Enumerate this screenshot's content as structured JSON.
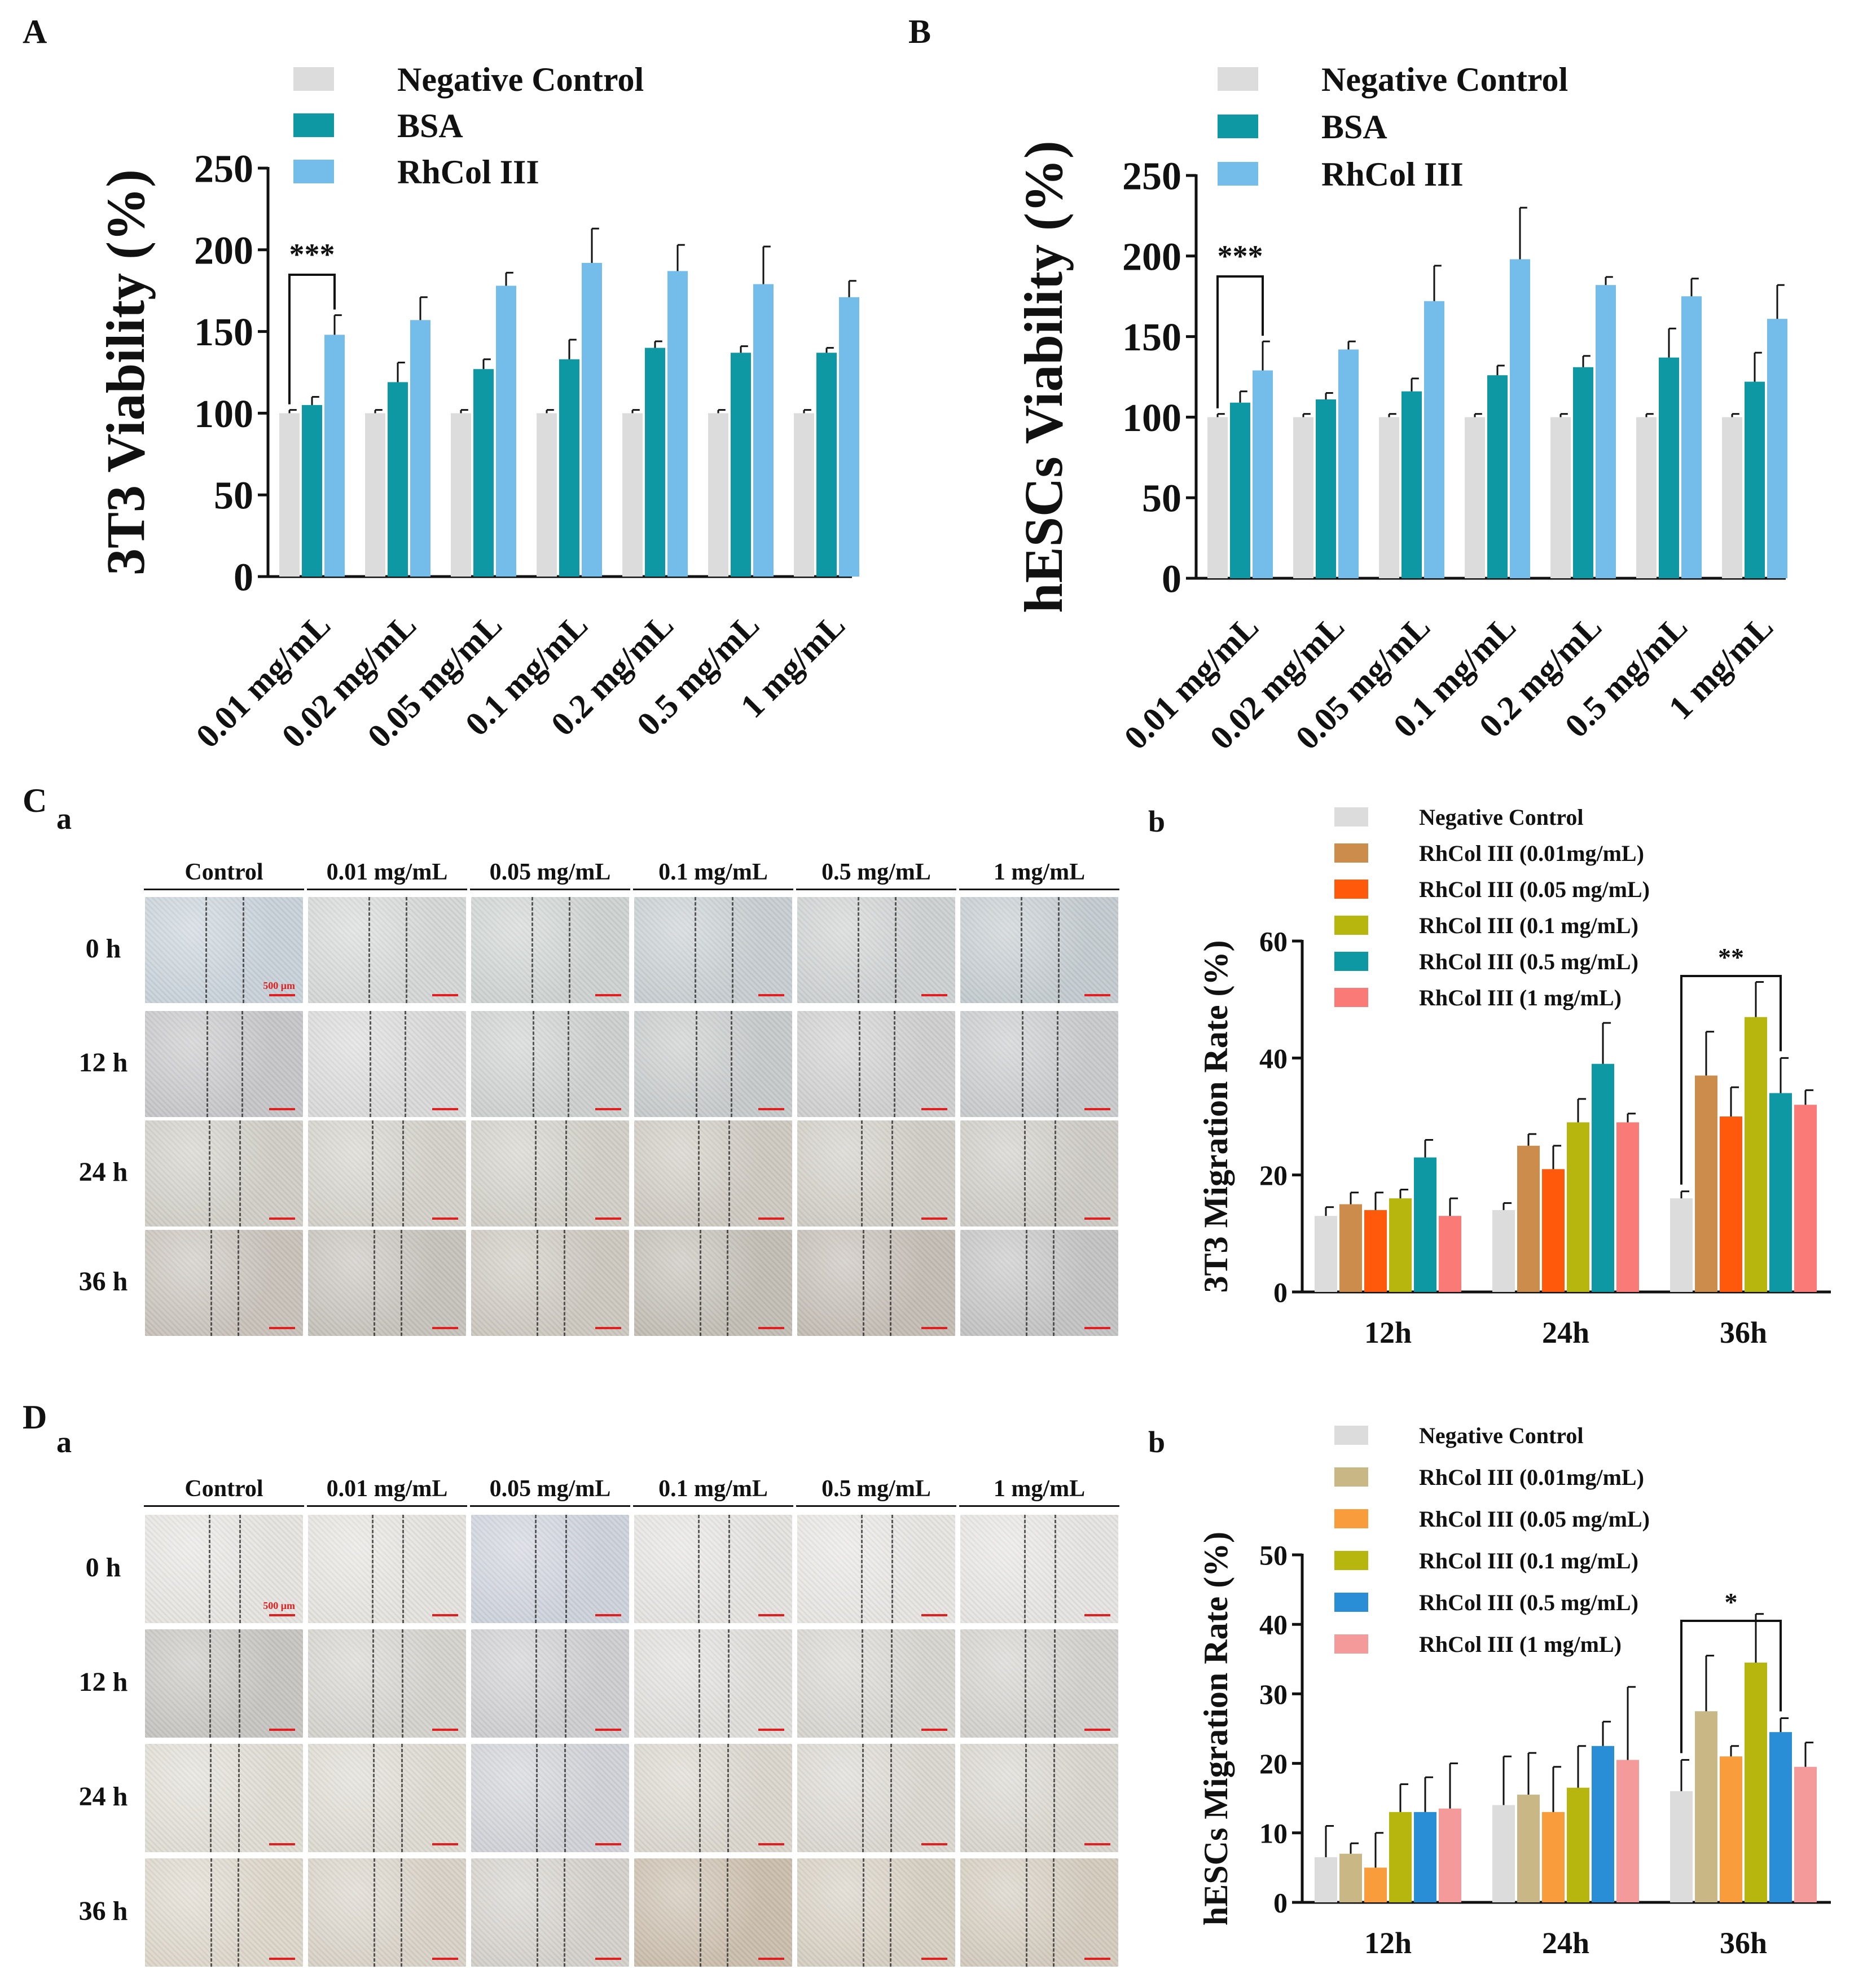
{
  "panels": {
    "A": "A",
    "B": "B",
    "C": "C",
    "D": "D",
    "Ca": "a",
    "Cb": "b",
    "Da": "a",
    "Db": "b"
  },
  "wound": {
    "columns": [
      "Control",
      "0.01 mg/mL",
      "0.05 mg/mL",
      "0.1 mg/mL",
      "0.5 mg/mL",
      "1 mg/mL"
    ],
    "rows": [
      "0 h",
      "12 h",
      "24 h",
      "36 h"
    ],
    "scale_bar": "500 μm"
  },
  "chart_data": [
    {
      "id": "A",
      "type": "bar",
      "ylabel": "3T3 Viability (%)",
      "ylim": [
        0,
        250
      ],
      "yticks": [
        0,
        50,
        100,
        150,
        200,
        250
      ],
      "categories": [
        "0.01 mg/mL",
        "0.02 mg/mL",
        "0.05 mg/mL",
        "0.1 mg/mL",
        "0.2 mg/mL",
        "0.5 mg/mL",
        "1 mg/mL"
      ],
      "series": [
        {
          "name": "Negative Control",
          "color": "#dcdcdc",
          "values": [
            100,
            100,
            100,
            100,
            100,
            100,
            100
          ],
          "err": [
            2,
            2,
            2,
            2,
            2,
            2,
            2
          ]
        },
        {
          "name": "BSA",
          "color": "#0e98a4",
          "values": [
            105,
            119,
            127,
            133,
            140,
            137,
            137
          ],
          "err": [
            5,
            12,
            6,
            12,
            4,
            4,
            3
          ]
        },
        {
          "name": "RhCol III",
          "color": "#74bcea",
          "values": [
            148,
            157,
            178,
            192,
            187,
            179,
            171
          ],
          "err": [
            12,
            14,
            8,
            21,
            16,
            23,
            10
          ]
        }
      ],
      "significance": {
        "label": "***",
        "from": [
          0,
          0
        ],
        "to": [
          0,
          2
        ]
      }
    },
    {
      "id": "B",
      "type": "bar",
      "ylabel": "hESCs Viability (%)",
      "ylim": [
        0,
        250
      ],
      "yticks": [
        0,
        50,
        100,
        150,
        200,
        250
      ],
      "categories": [
        "0.01 mg/mL",
        "0.02 mg/mL",
        "0.05 mg/mL",
        "0.1 mg/mL",
        "0.2 mg/mL",
        "0.5 mg/mL",
        "1 mg/mL"
      ],
      "series": [
        {
          "name": "Negative Control",
          "color": "#dcdcdc",
          "values": [
            100,
            100,
            100,
            100,
            100,
            100,
            100
          ],
          "err": [
            2,
            2,
            2,
            2,
            2,
            2,
            2
          ]
        },
        {
          "name": "BSA",
          "color": "#0e98a4",
          "values": [
            109,
            111,
            116,
            126,
            131,
            137,
            122
          ],
          "err": [
            7,
            4,
            8,
            6,
            7,
            18,
            18
          ]
        },
        {
          "name": "RhCol III",
          "color": "#74bcea",
          "values": [
            129,
            142,
            172,
            198,
            182,
            175,
            161
          ],
          "err": [
            18,
            5,
            22,
            32,
            5,
            11,
            21
          ]
        }
      ],
      "significance": {
        "label": "***",
        "from": [
          0,
          0
        ],
        "to": [
          0,
          2
        ]
      }
    },
    {
      "id": "Cb",
      "type": "bar",
      "ylabel": "3T3 Migration Rate (%)",
      "ylim": [
        0,
        60
      ],
      "yticks": [
        0,
        20,
        40,
        60
      ],
      "categories": [
        "12h",
        "24h",
        "36h"
      ],
      "series": [
        {
          "name": "Negative Control",
          "color": "#dcdcdc",
          "values": [
            13,
            14,
            16
          ],
          "err": [
            1.5,
            1.2,
            1.2
          ]
        },
        {
          "name": "RhCol III (0.01mg/mL)",
          "color": "#cc8c4c",
          "values": [
            15,
            25,
            37
          ],
          "err": [
            2,
            2,
            7.5
          ]
        },
        {
          "name": "RhCol III (0.05 mg/mL)",
          "color": "#ff5a0c",
          "values": [
            14,
            21,
            30
          ],
          "err": [
            3,
            4,
            5
          ]
        },
        {
          "name": "RhCol III (0.1 mg/mL)",
          "color": "#b7b60e",
          "values": [
            16,
            29,
            47
          ],
          "err": [
            1.5,
            4,
            6
          ]
        },
        {
          "name": "RhCol III (0.5 mg/mL)",
          "color": "#0e98a4",
          "values": [
            23,
            39,
            34
          ],
          "err": [
            3,
            7,
            6
          ]
        },
        {
          "name": "RhCol III (1 mg/mL)",
          "color": "#fa7a78",
          "values": [
            13,
            29,
            32
          ],
          "err": [
            3,
            1.5,
            2.5
          ]
        }
      ],
      "significance": {
        "label": "**",
        "from": [
          2,
          0
        ],
        "to": [
          2,
          4
        ]
      }
    },
    {
      "id": "Db",
      "type": "bar",
      "ylabel": "hESCs Migration Rate (%)",
      "ylim": [
        0,
        50
      ],
      "yticks": [
        0,
        10,
        20,
        30,
        40,
        50
      ],
      "categories": [
        "12h",
        "24h",
        "36h"
      ],
      "series": [
        {
          "name": "Negative Control",
          "color": "#dcdcdc",
          "values": [
            6.5,
            14,
            16
          ],
          "err": [
            4.5,
            7,
            4.5
          ]
        },
        {
          "name": "RhCol III (0.01mg/mL)",
          "color": "#c9b886",
          "values": [
            7,
            15.5,
            27.5
          ],
          "err": [
            1.5,
            6,
            8
          ]
        },
        {
          "name": "RhCol III (0.05 mg/mL)",
          "color": "#f89c3c",
          "values": [
            5,
            13,
            21
          ],
          "err": [
            5,
            6.5,
            1.5
          ]
        },
        {
          "name": "RhCol III (0.1 mg/mL)",
          "color": "#b7b60e",
          "values": [
            13,
            16.5,
            34.5
          ],
          "err": [
            4,
            6,
            7
          ]
        },
        {
          "name": "RhCol III (0.5 mg/mL)",
          "color": "#2a8ed6",
          "values": [
            13,
            22.5,
            24.5
          ],
          "err": [
            5,
            3.5,
            2
          ]
        },
        {
          "name": "RhCol III (1 mg/mL)",
          "color": "#f59a9a",
          "values": [
            13.5,
            20.5,
            19.5
          ],
          "err": [
            6.5,
            10.5,
            3.5
          ]
        }
      ],
      "significance": {
        "label": "*",
        "from": [
          2,
          0
        ],
        "to": [
          2,
          4
        ]
      }
    }
  ]
}
